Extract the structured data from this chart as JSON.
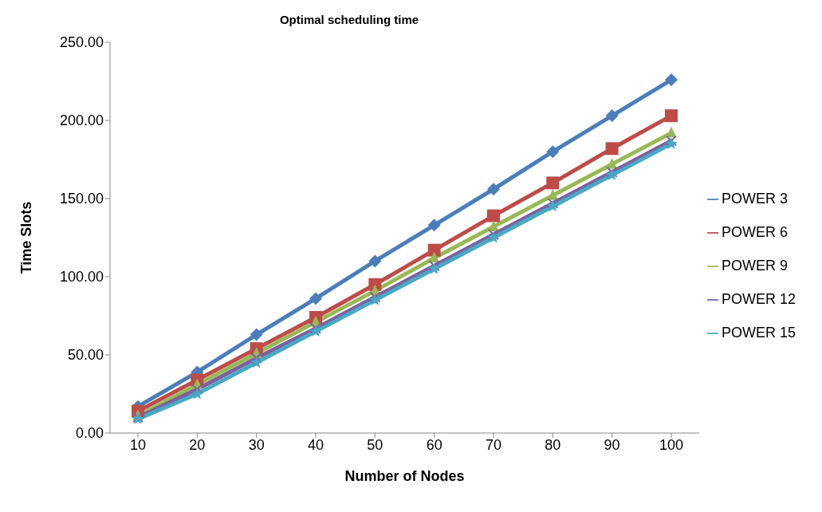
{
  "chart_data": {
    "type": "line",
    "title": "Optimal scheduling time",
    "xlabel": "Number of Nodes",
    "ylabel": "Time Slots",
    "categories": [
      "10",
      "20",
      "30",
      "40",
      "50",
      "60",
      "70",
      "80",
      "90",
      "100"
    ],
    "series": [
      {
        "name": "POWER 3",
        "color": "#4a7ebb",
        "marker": "diamond",
        "values": [
          17,
          39,
          63,
          86,
          110,
          133,
          156,
          180,
          203,
          226
        ]
      },
      {
        "name": "POWER 6",
        "color": "#be4b48",
        "marker": "square",
        "values": [
          14,
          34,
          54,
          74,
          95,
          117,
          139,
          160,
          182,
          203
        ]
      },
      {
        "name": "POWER 9",
        "color": "#98b954",
        "marker": "triangle",
        "values": [
          11,
          31,
          51,
          71,
          91,
          112,
          132,
          152,
          172,
          192
        ]
      },
      {
        "name": "POWER 12",
        "color": "#7d60a0",
        "marker": "cross",
        "values": [
          10,
          28,
          48,
          67,
          87,
          107,
          127,
          147,
          167,
          187
        ]
      },
      {
        "name": "POWER 15",
        "color": "#46aac5",
        "marker": "star",
        "values": [
          9,
          25,
          45,
          65,
          85,
          105,
          125,
          145,
          165,
          185
        ]
      }
    ],
    "ylim": [
      0,
      250
    ],
    "yticks": [
      {
        "value": 0,
        "label": "0.00"
      },
      {
        "value": 50,
        "label": "50.00"
      },
      {
        "value": 100,
        "label": "100.00"
      },
      {
        "value": 150,
        "label": "150.00"
      },
      {
        "value": 200,
        "label": "200.00"
      },
      {
        "value": 250,
        "label": "250.00"
      }
    ],
    "grid": false,
    "legend": "right",
    "line_style": "solid"
  }
}
